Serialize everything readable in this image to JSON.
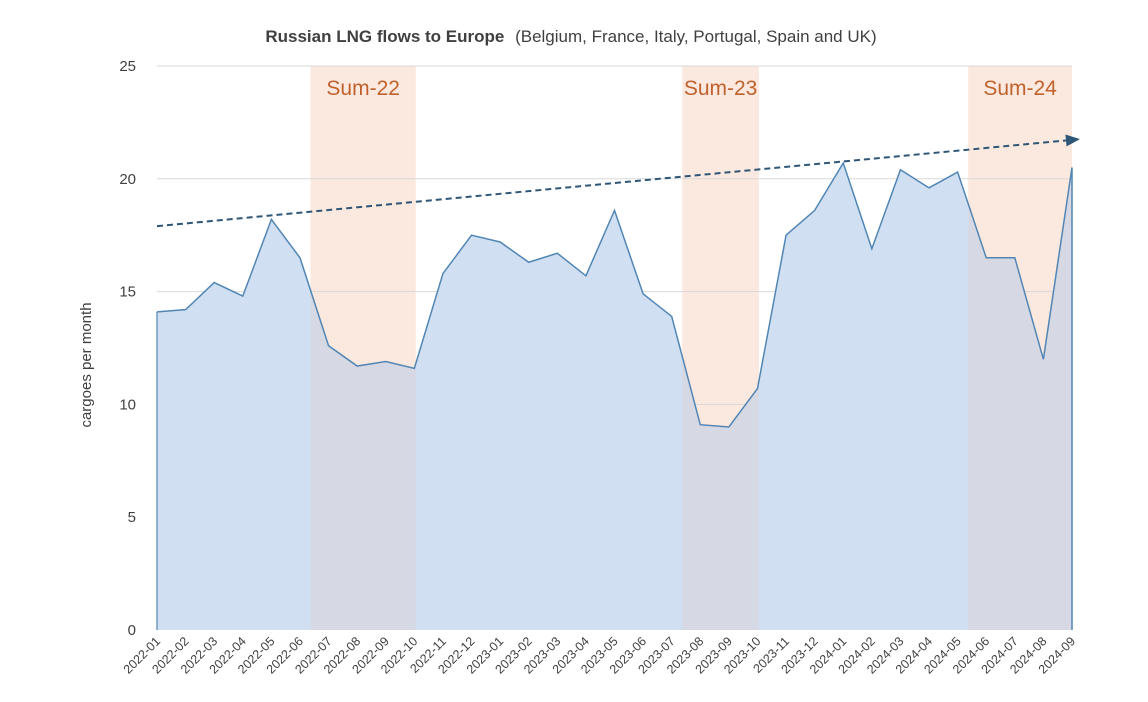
{
  "chart_data": {
    "type": "area",
    "title": {
      "bold": "Russian LNG flows to Europe",
      "normal": "(Belgium, France, Italy, Portugal, Spain and UK)"
    },
    "xlabel": "",
    "ylabel": "cargoes per month",
    "ylim": [
      0,
      25
    ],
    "yticks": [
      0,
      5,
      10,
      15,
      20,
      25
    ],
    "grid": true,
    "categories": [
      "2022-01",
      "2022-02",
      "2022-03",
      "2022-04",
      "2022-05",
      "2022-06",
      "2022-07",
      "2022-08",
      "2022-09",
      "2022-10",
      "2022-11",
      "2022-12",
      "2023-01",
      "2023-02",
      "2023-03",
      "2023-04",
      "2023-05",
      "2023-06",
      "2023-07",
      "2023-08",
      "2023-09",
      "2023-10",
      "2023-11",
      "2023-12",
      "2024-01",
      "2024-02",
      "2024-03",
      "2024-04",
      "2024-05",
      "2024-06",
      "2024-07",
      "2024-08",
      "2024-09"
    ],
    "series": [
      {
        "values": [
          14.1,
          14.2,
          15.4,
          14.8,
          18.2,
          16.5,
          12.6,
          11.7,
          11.9,
          11.6,
          15.8,
          17.5,
          17.2,
          16.3,
          16.7,
          15.7,
          18.6,
          14.9,
          13.9,
          9.1,
          9.0,
          10.7,
          17.5,
          18.6,
          20.7,
          16.9,
          20.4,
          19.6,
          20.3,
          16.5,
          16.5,
          12.0,
          20.5
        ]
      }
    ],
    "trend": {
      "start": {
        "x": "2022-01",
        "y": 17.9
      },
      "end": {
        "x": "2024-09",
        "y": 21.7
      }
    },
    "shaded_periods": [
      {
        "label": "Sum-22",
        "from": "2022-06",
        "to": "2022-10"
      },
      {
        "label": "Sum-23",
        "from": "2023-07",
        "to": "2023-10"
      },
      {
        "label": "Sum-24",
        "from": "2024-05",
        "to": "2024-09"
      }
    ],
    "colors": {
      "area_fill": "#d0dff1",
      "area_line": "#5186b4",
      "trend": "#2e5677",
      "shade": "#fbe8de",
      "shade_overlap": "#d6d8e4",
      "season_label": "#c0622d",
      "grid": "#d9d9d9",
      "text": "#404040"
    }
  }
}
